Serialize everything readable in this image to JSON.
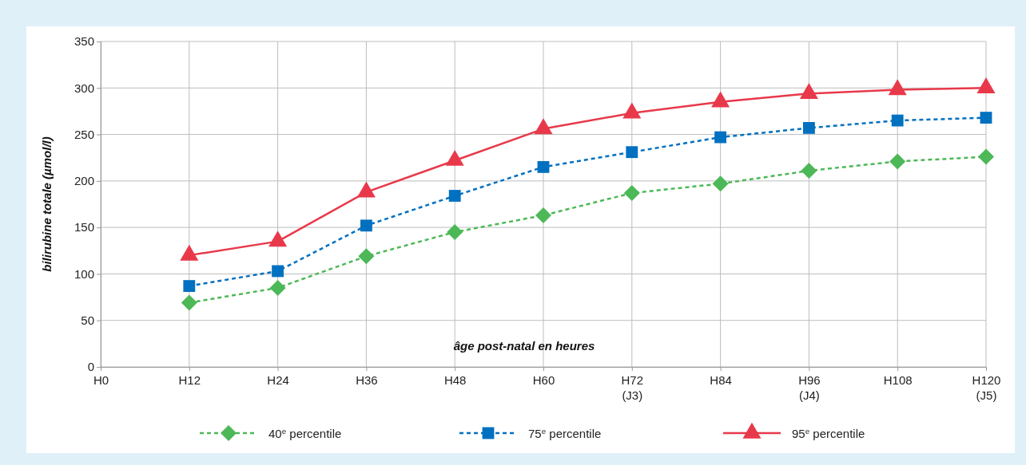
{
  "chart_data": {
    "type": "line",
    "xlabel": "âge post-natal en heures",
    "ylabel": "bilirubine totale (µmol/l)",
    "categories": [
      "H0",
      "H12",
      "H24",
      "H36",
      "H48",
      "H60",
      "H72\n(J3)",
      "H84",
      "H96\n(J4)",
      "H108",
      "H120\n(J5)"
    ],
    "ylim": [
      0,
      350
    ],
    "yticks": [
      0,
      50,
      100,
      150,
      200,
      250,
      300,
      350
    ],
    "grid": true,
    "legend": "bottom",
    "series": [
      {
        "name": "40$^{e}$ percentile",
        "color": "#4db857",
        "marker": "diamond",
        "line_style": "dashed",
        "values": [
          null,
          69,
          85,
          119,
          145,
          163,
          187,
          197,
          211,
          221,
          226
        ]
      },
      {
        "name": "75$^{e}$ percentile",
        "color": "#0070c0",
        "marker": "square",
        "line_style": "dashed",
        "values": [
          null,
          87,
          103,
          152,
          184,
          215,
          231,
          247,
          257,
          265,
          268
        ]
      },
      {
        "name": "95$^{e}$ percentile",
        "color": "#e8394a",
        "marker": "triangle",
        "line_style": "solid",
        "values": [
          null,
          120,
          135,
          188,
          222,
          256,
          273,
          285,
          294,
          298,
          300
        ]
      }
    ]
  }
}
